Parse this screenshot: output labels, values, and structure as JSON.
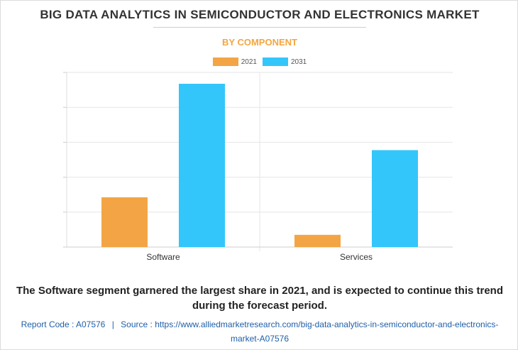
{
  "header": {
    "title": "BIG DATA ANALYTICS IN SEMICONDUCTOR AND ELECTRONICS MARKET",
    "subtitle": "BY COMPONENT"
  },
  "colors": {
    "series_2021": "#f3a545",
    "series_2031": "#33c6fb",
    "subtitle": "#f3a63f",
    "footer_link": "#1f5fa8",
    "gridline": "#e6e6e6"
  },
  "chart_data": {
    "type": "bar",
    "categories": [
      "Software",
      "Services"
    ],
    "series": [
      {
        "name": "2021",
        "values": [
          28.5,
          7.0
        ]
      },
      {
        "name": "2031",
        "values": [
          93.5,
          55.5
        ]
      }
    ],
    "ylim": [
      0,
      100
    ],
    "y_ticks_labeled": false,
    "grid": true,
    "legend": "top-center",
    "title": "",
    "xlabel": "",
    "ylabel": ""
  },
  "caption": "The Software segment garnered the largest share in 2021, and is expected to continue this trend during the forecast period.",
  "footer": {
    "report_code": "Report Code : A07576",
    "separator": "|",
    "source_line1": "Source : https://www.alliedmarketresearch.com/big-data-analytics-in-semiconductor-and-electronics-",
    "source_line2": "market-A07576"
  }
}
